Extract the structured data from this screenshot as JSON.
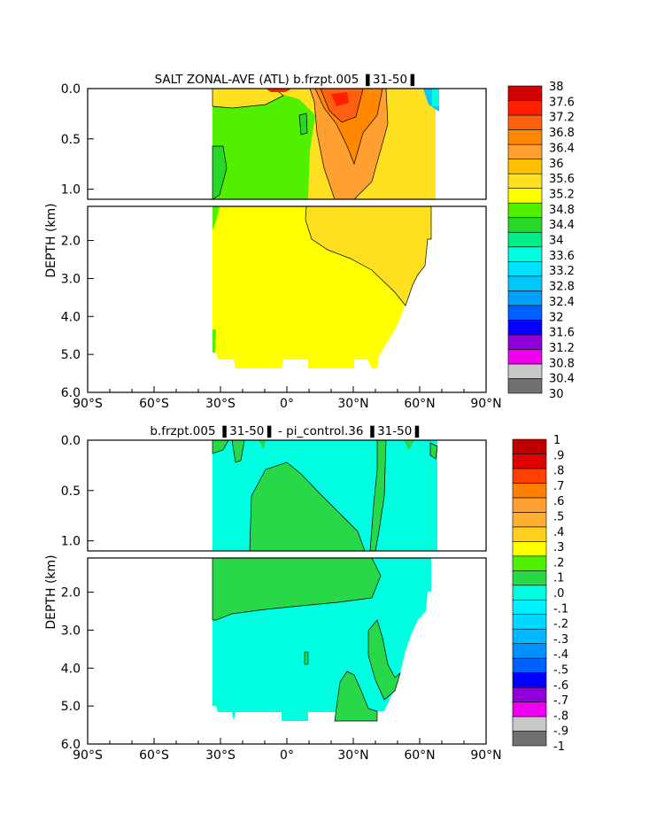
{
  "colors": {
    "salt_scale": [
      "#707070",
      "#c8c8c8",
      "#ee00ee",
      "#9000d8",
      "#0000ff",
      "#0060ff",
      "#00a0ff",
      "#00c8ff",
      "#00e0ff",
      "#00ffe0",
      "#00ee88",
      "#28d828",
      "#50f000",
      "#ffff00",
      "#ffe020",
      "#ffc000",
      "#ffa030",
      "#ff8800",
      "#ff6010",
      "#ff2000",
      "#d00000"
    ],
    "anom_scale": [
      "#707070",
      "#c8c8c8",
      "#ee00ee",
      "#9000d8",
      "#0000ff",
      "#0060ff",
      "#0090ff",
      "#00b8ff",
      "#00d8ff",
      "#00f0ff",
      "#00ffe0",
      "#28d848",
      "#50f000",
      "#ffff00",
      "#ffd020",
      "#ffb030",
      "#ffa030",
      "#ff8000",
      "#ff4000",
      "#e00000",
      "#c00000"
    ]
  },
  "chart_data": [
    {
      "type": "heatmap",
      "title": "SALT ZONAL-AVE (ATL) b.frzpt.005 ❚31-50❚",
      "ylabel": "DEPTH (km)",
      "x_ticks": [
        "90°S",
        "60°S",
        "30°S",
        "0°",
        "30°N",
        "60°N",
        "90°N"
      ],
      "xlim": [
        -90,
        90
      ],
      "y_ticks_upper": [
        "0.0",
        "0.5",
        "1.0"
      ],
      "y_ticks_lower": [
        "2.0",
        "3.0",
        "4.0",
        "5.0",
        "6.0"
      ],
      "ylim": [
        0,
        6
      ],
      "colorbar_labels": [
        "38",
        "37.6",
        "37.2",
        "36.8",
        "36.4",
        "36",
        "35.6",
        "35.2",
        "34.8",
        "34.4",
        "34",
        "33.6",
        "33.2",
        "32.8",
        "32.4",
        "32",
        "31.6",
        "31.2",
        "30.8",
        "30.4",
        "30"
      ],
      "colorbar_min": 30,
      "colorbar_max": 38,
      "colorbar_step": 0.4,
      "ocean_extent": {
        "lat_south": -34,
        "lat_north": 66,
        "max_depth_km": 5.4
      }
    },
    {
      "type": "heatmap",
      "title": "b.frzpt.005 ❚31-50❚ - pi_control.36 ❚31-50❚",
      "ylabel": "DEPTH (km)",
      "x_ticks": [
        "90°S",
        "60°S",
        "30°S",
        "0°",
        "30°N",
        "60°N",
        "90°N"
      ],
      "xlim": [
        -90,
        90
      ],
      "y_ticks_upper": [
        "0.0",
        "0.5",
        "1.0"
      ],
      "y_ticks_lower": [
        "2.0",
        "3.0",
        "4.0",
        "5.0",
        "6.0"
      ],
      "ylim": [
        0,
        6
      ],
      "colorbar_labels": [
        "1",
        ".9",
        ".8",
        ".7",
        ".6",
        ".5",
        ".4",
        ".3",
        ".2",
        ".1",
        ".0",
        "-.1",
        "-.2",
        "-.3",
        "-.4",
        "-.5",
        "-.6",
        "-.7",
        "-.8",
        "-.9",
        "-1"
      ],
      "colorbar_min": -1,
      "colorbar_max": 1,
      "colorbar_step": 0.1,
      "ocean_extent": {
        "lat_south": -34,
        "lat_north": 66,
        "max_depth_km": 5.4
      }
    }
  ]
}
